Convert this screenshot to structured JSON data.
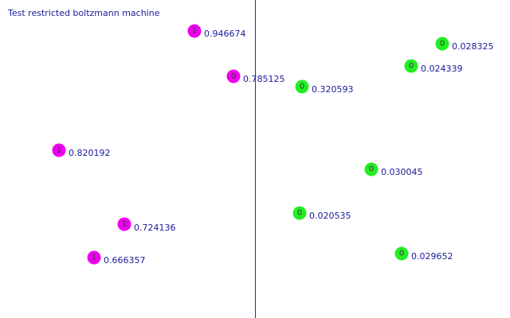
{
  "title": "Test restricted boltzmann machine",
  "colors": {
    "left_node": "#ee00ee",
    "right_node": "#22ee22",
    "text": "#1a1a99",
    "divider": "#2a2aa8"
  },
  "left_units": [
    {
      "state": "1",
      "value": "0.946674"
    },
    {
      "state": "0",
      "value": "0.785125"
    },
    {
      "state": "1",
      "value": "0.820192"
    },
    {
      "state": "1",
      "value": "0.724136"
    },
    {
      "state": "1",
      "value": "0.666357"
    }
  ],
  "right_units": [
    {
      "state": "0",
      "value": "0.028325"
    },
    {
      "state": "0",
      "value": "0.024339"
    },
    {
      "state": "0",
      "value": "0.320593"
    },
    {
      "state": "0",
      "value": "0.030045"
    },
    {
      "state": "0",
      "value": "0.020535"
    },
    {
      "state": "0",
      "value": "0.029652"
    }
  ]
}
